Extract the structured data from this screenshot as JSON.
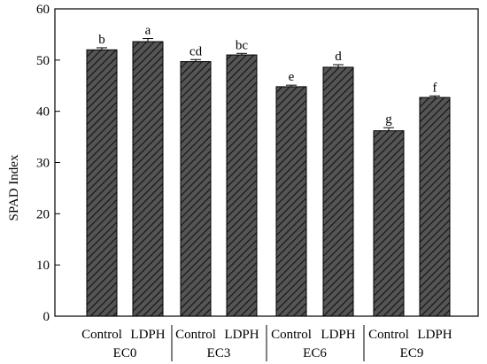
{
  "chart_data": {
    "type": "bar",
    "ylabel": "SPAD Index",
    "xlabel": "",
    "ylim": [
      0,
      60
    ],
    "yticks": [
      0,
      10,
      20,
      30,
      40,
      50,
      60
    ],
    "categories": [
      "Control",
      "LDPH",
      "Control",
      "LDPH",
      "Control",
      "LDPH",
      "Control",
      "LDPH"
    ],
    "groups": [
      {
        "label": "EC0",
        "start": 0,
        "end": 1
      },
      {
        "label": "EC3",
        "start": 2,
        "end": 3
      },
      {
        "label": "EC6",
        "start": 4,
        "end": 5
      },
      {
        "label": "EC9",
        "start": 6,
        "end": 7
      }
    ],
    "values": [
      52.0,
      53.6,
      49.7,
      51.0,
      44.8,
      48.6,
      36.2,
      42.7
    ],
    "errors": [
      0.4,
      0.6,
      0.4,
      0.3,
      0.3,
      0.5,
      0.6,
      0.3
    ],
    "significance": [
      "b",
      "a",
      "cd",
      "bc",
      "e",
      "d",
      "g",
      "f"
    ],
    "bar_fill": "#555555",
    "hatch_color": "#1a1a1a",
    "grid": false,
    "legend": "none"
  }
}
